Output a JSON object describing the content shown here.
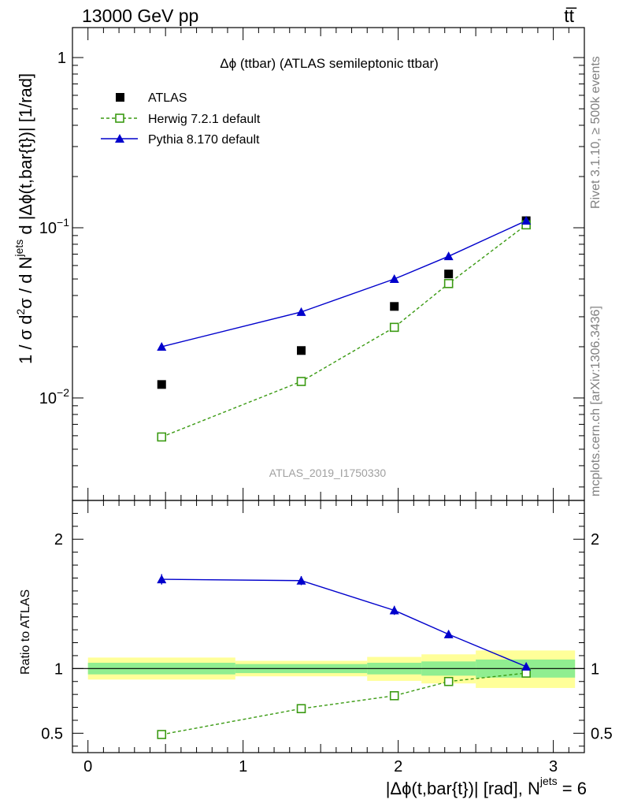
{
  "header": {
    "left": "13000 GeV pp",
    "right": "tt̅"
  },
  "side_labels": {
    "rivet": "Rivet 3.1.10, ≥ 500k events",
    "mcplots": "mcplots.cern.ch [arXiv:1306.3436]"
  },
  "chart_data": [
    {
      "type": "scatter",
      "panel": "main",
      "title": "Δϕ (ttbar) (ATLAS semileptonic ttbar)",
      "ylabel": "1 / σ d²σ / d N^jets d |Δϕ(t,bar{t})| [1/rad]",
      "ylabel_parts": {
        "p1": "1 / σ d",
        "sup1": "2",
        "p2": "σ / d N",
        "sup2": "jets",
        "p3": " d |Δϕ(t,bar{t})| [1/rad]"
      },
      "yscale": "log",
      "ylim": [
        0.0025,
        1.5
      ],
      "xlim": [
        -0.1,
        3.2
      ],
      "y_ticks": [
        {
          "value": 1,
          "label": "1"
        },
        {
          "value": 0.1,
          "label": "10",
          "exp": "−1"
        },
        {
          "value": 0.01,
          "label": "10",
          "exp": "−2"
        }
      ],
      "watermark": "ATLAS_2019_I1750330",
      "legend_position": "top-left",
      "series": [
        {
          "name": "ATLAS",
          "style": "square-filled",
          "color": "#000000",
          "x": [
            0.475,
            1.375,
            1.975,
            2.325,
            2.825
          ],
          "y": [
            0.012,
            0.019,
            0.0345,
            0.0535,
            0.11
          ]
        },
        {
          "name": "Herwig 7.2.1 default",
          "style": "square-open-dashed",
          "color": "#3a9a12",
          "x": [
            0.475,
            1.375,
            1.975,
            2.325,
            2.825
          ],
          "y": [
            0.0059,
            0.0125,
            0.026,
            0.047,
            0.104
          ]
        },
        {
          "name": "Pythia 8.170 default",
          "style": "triangle-solid",
          "color": "#0000cc",
          "x": [
            0.475,
            1.375,
            1.975,
            2.325,
            2.825
          ],
          "y": [
            0.02,
            0.032,
            0.05,
            0.068,
            0.11
          ]
        }
      ]
    },
    {
      "type": "scatter",
      "panel": "ratio",
      "ylabel": "Ratio to ATLAS",
      "xlabel": "|Δϕ(t,bar{t})| [rad], N",
      "xlabel_sup": "jets",
      "xlabel_suffix": " = 6",
      "ylim": [
        0.35,
        2.3
      ],
      "xlim": [
        -0.1,
        3.2
      ],
      "y_ticks": [
        {
          "value": 2,
          "label": "2"
        },
        {
          "value": 1,
          "label": "1"
        },
        {
          "value": 0.5,
          "label": "0.5"
        }
      ],
      "x_ticks": [
        {
          "value": 0,
          "label": "0"
        },
        {
          "value": 1,
          "label": "1"
        },
        {
          "value": 2,
          "label": "2"
        },
        {
          "value": 3,
          "label": "3"
        }
      ],
      "bands": [
        {
          "x0": 0.0,
          "x1": 0.95,
          "stat_lo": 0.955,
          "stat_hi": 1.045,
          "tot_lo": 0.915,
          "tot_hi": 1.085
        },
        {
          "x0": 0.95,
          "x1": 1.8,
          "stat_lo": 0.965,
          "stat_hi": 1.035,
          "tot_lo": 0.94,
          "tot_hi": 1.06
        },
        {
          "x0": 1.8,
          "x1": 2.15,
          "stat_lo": 0.955,
          "stat_hi": 1.045,
          "tot_lo": 0.905,
          "tot_hi": 1.09
        },
        {
          "x0": 2.15,
          "x1": 2.5,
          "stat_lo": 0.945,
          "stat_hi": 1.055,
          "tot_lo": 0.885,
          "tot_hi": 1.11
        },
        {
          "x0": 2.5,
          "x1": 3.14,
          "stat_lo": 0.93,
          "stat_hi": 1.07,
          "tot_lo": 0.85,
          "tot_hi": 1.14
        }
      ],
      "band_colors": {
        "stat": "#90ee90",
        "total": "#ffff99"
      },
      "series": [
        {
          "name": "Herwig 7.2.1 default",
          "style": "square-open-dashed",
          "color": "#3a9a12",
          "x": [
            0.475,
            1.375,
            1.975,
            2.325,
            2.825
          ],
          "y": [
            0.49,
            0.69,
            0.79,
            0.9,
            0.965
          ],
          "err": [
            0.01,
            0.01,
            0.01,
            0.01,
            0.01
          ]
        },
        {
          "name": "Pythia 8.170 default",
          "style": "triangle-solid",
          "color": "#0000cc",
          "x": [
            0.475,
            1.375,
            1.975,
            2.325,
            2.825
          ],
          "y": [
            1.69,
            1.68,
            1.45,
            1.265,
            1.015
          ],
          "err": [
            0.04,
            0.035,
            0.035,
            0.03,
            0.02
          ]
        }
      ]
    }
  ]
}
